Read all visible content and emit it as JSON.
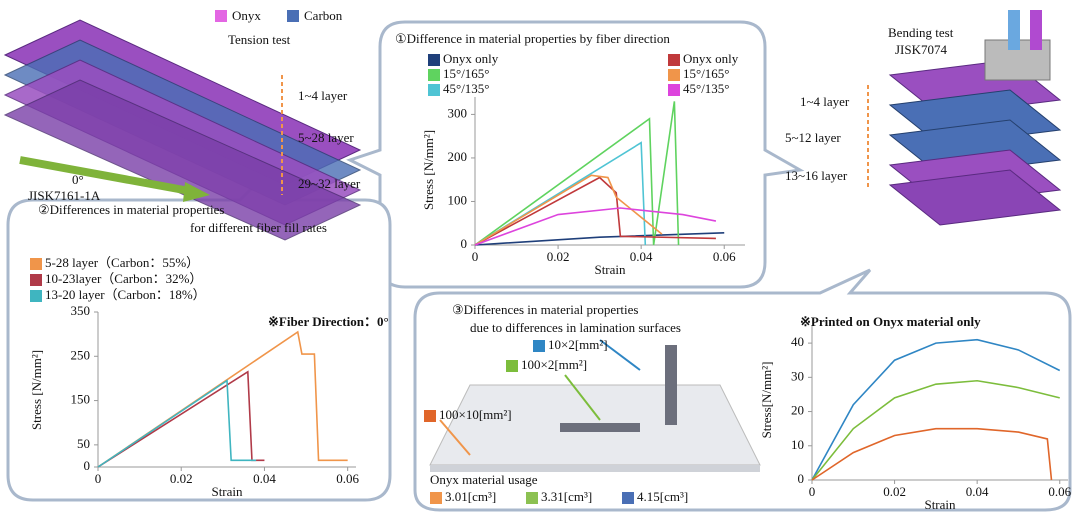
{
  "specimens": {
    "legend": [
      {
        "name": "Onyx",
        "color": "#e366e3"
      },
      {
        "name": "Carbon",
        "color": "#4a6fb5"
      }
    ],
    "tension": {
      "title": "Tension test",
      "layers": [
        "1~4 layer",
        "5~28 layer",
        "29~32 layer"
      ],
      "angle": "0°",
      "standard": "JISK7161-1A"
    },
    "bending": {
      "title": "Bending test",
      "standard": "JISK7074",
      "layers": [
        "1~4 layer",
        "5~12 layer",
        "13~16 layer"
      ]
    }
  },
  "chart_data": [
    {
      "type": "line",
      "title": "①Difference in material properties by fiber direction",
      "x_label": "Strain",
      "y_label": "Stress [N/mm²]",
      "xlim": [
        0,
        0.065
      ],
      "xticks": [
        0,
        0.02,
        0.04,
        0.06
      ],
      "ylim": [
        0,
        340
      ],
      "yticks": [
        0,
        100,
        200,
        300
      ],
      "series": [
        {
          "name": "Onyx only",
          "color": "#1f3f7a",
          "x": [
            0,
            0.03,
            0.06
          ],
          "values": [
            0,
            18,
            28
          ]
        },
        {
          "name": "15°/165°",
          "color": "#5fd35f",
          "x": [
            0,
            0.042,
            0.043,
            0.048,
            0.049
          ],
          "values": [
            0,
            290,
            0,
            330,
            0
          ]
        },
        {
          "name": "45°/135°",
          "color": "#4fc4d4",
          "x": [
            0,
            0.04,
            0.041
          ],
          "values": [
            0,
            235,
            0
          ]
        },
        {
          "name": "Onyx only",
          "color": "#c0393b",
          "x": [
            0,
            0.03,
            0.034,
            0.035,
            0.058
          ],
          "values": [
            0,
            155,
            120,
            20,
            15
          ]
        },
        {
          "name": "15°/165°",
          "color": "#f0954a",
          "x": [
            0,
            0.028,
            0.032,
            0.034,
            0.045
          ],
          "values": [
            0,
            160,
            155,
            110,
            25
          ]
        },
        {
          "name": "45°/135°",
          "color": "#dd44dd",
          "x": [
            0,
            0.02,
            0.035,
            0.05,
            0.058
          ],
          "values": [
            0,
            70,
            85,
            70,
            55
          ]
        }
      ]
    },
    {
      "type": "line",
      "title": "②Differences in material properties",
      "subtitle": "for different fiber fill rates",
      "annotation": "※Fiber Direction：0°",
      "x_label": "Strain",
      "y_label": "Stress [N/mm²]",
      "xlim": [
        0,
        0.062
      ],
      "xticks": [
        0,
        0.02,
        0.04,
        0.06
      ],
      "ylim": [
        0,
        350
      ],
      "yticks": [
        0,
        50,
        150,
        250,
        350
      ],
      "series": [
        {
          "name": "5-28 layer（Carbon：55%）",
          "color": "#f0954a",
          "x": [
            0,
            0.048,
            0.049,
            0.052,
            0.053,
            0.06
          ],
          "values": [
            0,
            305,
            255,
            255,
            15,
            15
          ]
        },
        {
          "name": "10-23layer（Carbon：32%）",
          "color": "#b03a48",
          "x": [
            0,
            0.036,
            0.037,
            0.04
          ],
          "values": [
            0,
            215,
            15,
            15
          ]
        },
        {
          "name": "13-20 layer（Carbon：18%）",
          "color": "#3fb5c0",
          "x": [
            0,
            0.031,
            0.032,
            0.038
          ],
          "values": [
            0,
            195,
            15,
            15
          ]
        }
      ]
    },
    {
      "type": "line",
      "title": "③Differences in material properties",
      "subtitle": "due to differences in lamination surfaces",
      "annotation": "※Printed on Onyx material only",
      "x_label": "Strain",
      "y_label": "Stress[N/mm²]",
      "xlim": [
        0,
        0.062
      ],
      "xticks": [
        0,
        0.02,
        0.04,
        0.06
      ],
      "ylim": [
        0,
        45
      ],
      "yticks": [
        0,
        10,
        20,
        30,
        40
      ],
      "series": [
        {
          "name": "10×2[mm²]",
          "color": "#2f86c4",
          "x": [
            0,
            0.01,
            0.02,
            0.03,
            0.04,
            0.05,
            0.06
          ],
          "values": [
            0,
            22,
            35,
            40,
            41,
            38,
            32
          ]
        },
        {
          "name": "100×2[mm²]",
          "color": "#7cbd3c",
          "x": [
            0,
            0.01,
            0.02,
            0.03,
            0.04,
            0.05,
            0.06
          ],
          "values": [
            0,
            15,
            24,
            28,
            29,
            27,
            24
          ]
        },
        {
          "name": "100×10[mm²]",
          "color": "#e0662a",
          "x": [
            0,
            0.01,
            0.02,
            0.03,
            0.04,
            0.05,
            0.057,
            0.058
          ],
          "values": [
            0,
            8,
            13,
            15,
            15,
            14,
            12,
            0
          ]
        }
      ],
      "usage": {
        "title": "Onyx material usage",
        "items": [
          {
            "label": "3.01[cm³]",
            "color": "#f0954a"
          },
          {
            "label": "3.31[cm³]",
            "color": "#8cc152"
          },
          {
            "label": "4.15[cm³]",
            "color": "#4a6fb5"
          }
        ]
      }
    }
  ]
}
